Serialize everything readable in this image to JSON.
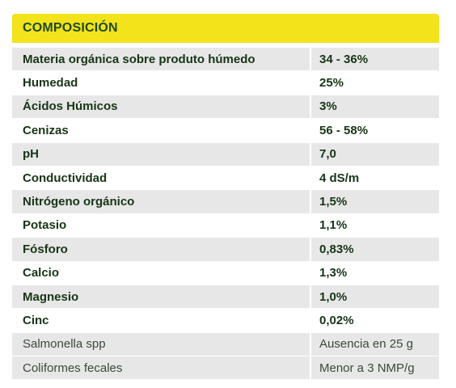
{
  "table": {
    "title": "COMPOSICIÓN",
    "rows": [
      [
        "Materia orgánica sobre produto húmedo",
        "34 - 36%"
      ],
      [
        "Humedad",
        "25%"
      ],
      [
        "Ácidos Húmicos",
        "3%"
      ],
      [
        "Cenizas",
        "56 - 58%"
      ],
      [
        "pH",
        "7,0"
      ],
      [
        "Conductividad",
        "4 dS/m"
      ],
      [
        "Nitrógeno orgánico",
        "1,5%"
      ],
      [
        "Potasio",
        "1,1%"
      ],
      [
        "Fósforo",
        "0,83%"
      ],
      [
        "Calcio",
        "1,3%"
      ],
      [
        "Magnesio",
        "1,0%"
      ],
      [
        "Cinc",
        "0,02%"
      ],
      [
        "Salmonella spp",
        "Ausencia en 25 g"
      ],
      [
        "Coliformes fecales",
        "Menor a 3 NMP/g"
      ]
    ]
  }
}
